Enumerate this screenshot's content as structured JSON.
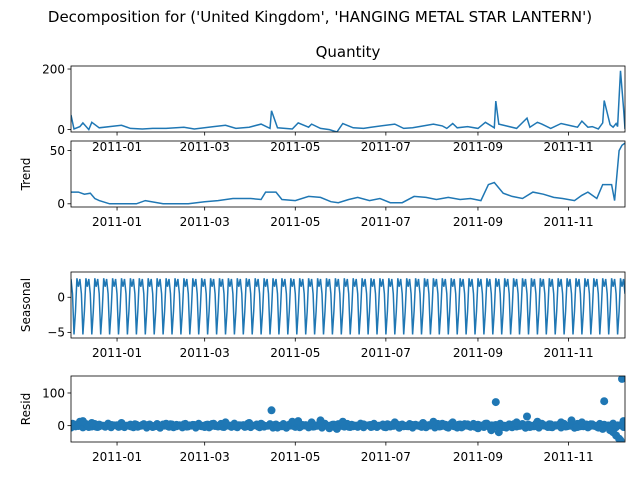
{
  "title": "Decomposition for ('United Kingdom', 'HANGING METAL STAR LANTERN')",
  "chart_data": [
    {
      "type": "line",
      "panel": "observed",
      "title": "Quantity",
      "ylabel": "",
      "ylim": [
        -8,
        210
      ],
      "yticks": [
        0,
        200
      ],
      "xlim": [
        "2010-12-01",
        "2011-12-09"
      ],
      "xticks": [
        "2011-01",
        "2011-03",
        "2011-05",
        "2011-07",
        "2011-09",
        "2011-11"
      ],
      "x": [
        "2010-12-01",
        "2010-12-03",
        "2010-12-07",
        "2010-12-09",
        "2010-12-13",
        "2010-12-15",
        "2010-12-20",
        "2011-01-04",
        "2011-01-10",
        "2011-01-18",
        "2011-01-25",
        "2011-02-03",
        "2011-02-15",
        "2011-02-22",
        "2011-03-07",
        "2011-03-15",
        "2011-03-22",
        "2011-03-31",
        "2011-04-08",
        "2011-04-14",
        "2011-04-15",
        "2011-04-19",
        "2011-04-29",
        "2011-05-03",
        "2011-05-10",
        "2011-05-12",
        "2011-05-18",
        "2011-05-24",
        "2011-05-29",
        "2011-06-02",
        "2011-06-09",
        "2011-06-16",
        "2011-06-21",
        "2011-07-07",
        "2011-07-13",
        "2011-07-19",
        "2011-08-02",
        "2011-08-08",
        "2011-08-11",
        "2011-08-15",
        "2011-08-18",
        "2011-08-25",
        "2011-09-01",
        "2011-09-06",
        "2011-09-12",
        "2011-09-13",
        "2011-09-15",
        "2011-09-20",
        "2011-09-27",
        "2011-10-04",
        "2011-10-06",
        "2011-10-11",
        "2011-10-14",
        "2011-10-20",
        "2011-10-27",
        "2011-11-03",
        "2011-11-07",
        "2011-11-10",
        "2011-11-14",
        "2011-11-17",
        "2011-11-21",
        "2011-11-24",
        "2011-11-25",
        "2011-11-29",
        "2011-12-01",
        "2011-12-03",
        "2011-12-04",
        "2011-12-06",
        "2011-12-08",
        "2011-12-09"
      ],
      "values": [
        48,
        2,
        10,
        22,
        0,
        24,
        6,
        14,
        4,
        2,
        4,
        4,
        8,
        2,
        10,
        14,
        4,
        8,
        18,
        4,
        62,
        6,
        2,
        22,
        8,
        18,
        4,
        0,
        -8,
        20,
        6,
        4,
        8,
        18,
        4,
        6,
        18,
        12,
        4,
        20,
        6,
        10,
        4,
        24,
        6,
        94,
        18,
        12,
        4,
        38,
        8,
        24,
        18,
        4,
        20,
        12,
        8,
        28,
        8,
        10,
        2,
        22,
        96,
        16,
        8,
        20,
        10,
        194,
        72,
        2
      ]
    },
    {
      "type": "line",
      "panel": "trend",
      "ylabel": "Trend",
      "ylim": [
        -3,
        59
      ],
      "yticks": [
        0,
        50
      ],
      "xlim": [
        "2010-12-01",
        "2011-12-09"
      ],
      "xticks": [
        "2011-01",
        "2011-03",
        "2011-05",
        "2011-07",
        "2011-09",
        "2011-11"
      ],
      "x": [
        "2010-12-01",
        "2010-12-06",
        "2010-12-10",
        "2010-12-14",
        "2010-12-17",
        "2010-12-20",
        "2010-12-27",
        "2011-01-03",
        "2011-01-08",
        "2011-01-14",
        "2011-01-20",
        "2011-02-01",
        "2011-02-10",
        "2011-02-18",
        "2011-03-01",
        "2011-03-10",
        "2011-03-20",
        "2011-04-01",
        "2011-04-08",
        "2011-04-11",
        "2011-04-18",
        "2011-04-22",
        "2011-05-01",
        "2011-05-10",
        "2011-05-18",
        "2011-05-25",
        "2011-05-30",
        "2011-06-06",
        "2011-06-12",
        "2011-06-20",
        "2011-06-27",
        "2011-07-04",
        "2011-07-12",
        "2011-07-20",
        "2011-07-28",
        "2011-08-04",
        "2011-08-12",
        "2011-08-20",
        "2011-08-27",
        "2011-09-03",
        "2011-09-08",
        "2011-09-12",
        "2011-09-18",
        "2011-09-24",
        "2011-10-01",
        "2011-10-08",
        "2011-10-15",
        "2011-10-22",
        "2011-10-28",
        "2011-11-05",
        "2011-11-10",
        "2011-11-14",
        "2011-11-20",
        "2011-11-24",
        "2011-11-30",
        "2011-12-02",
        "2011-12-05",
        "2011-12-07",
        "2011-12-09"
      ],
      "values": [
        11,
        11,
        9,
        10,
        5,
        3,
        0,
        0,
        0,
        0,
        3,
        0,
        0,
        0,
        2,
        3,
        5,
        5,
        4,
        11,
        11,
        4,
        3,
        7,
        6,
        2,
        1,
        4,
        6,
        3,
        5,
        1,
        1,
        7,
        6,
        4,
        6,
        4,
        5,
        3,
        18,
        20,
        10,
        7,
        5,
        11,
        9,
        6,
        5,
        3,
        8,
        11,
        5,
        18,
        18,
        3,
        50,
        55,
        57
      ]
    },
    {
      "type": "line",
      "panel": "seasonal",
      "ylabel": "Seasonal",
      "ylim": [
        -5.8,
        3.6
      ],
      "yticks": [
        -5,
        0
      ],
      "xlim": [
        "2010-12-01",
        "2011-12-09"
      ],
      "xticks": [
        "2011-01",
        "2011-03",
        "2011-05",
        "2011-07",
        "2011-09",
        "2011-11"
      ],
      "period_days": 6,
      "pattern": [
        2.6,
        0.5,
        -5.3,
        -2.0,
        2.7,
        1.5
      ]
    },
    {
      "type": "scatter",
      "panel": "resid",
      "ylabel": "Resid",
      "ylim": [
        -50,
        152
      ],
      "yticks": [
        0,
        100
      ],
      "xlim": [
        "2010-12-01",
        "2011-12-09"
      ],
      "xticks": [
        "2011-01",
        "2011-03",
        "2011-05",
        "2011-07",
        "2011-09",
        "2011-11"
      ],
      "points": [
        [
          "2010-12-01",
          -6
        ],
        [
          "2010-12-03",
          4
        ],
        [
          "2010-12-07",
          12
        ],
        [
          "2010-12-09",
          14
        ],
        [
          "2010-12-13",
          -4
        ],
        [
          "2010-12-15",
          8
        ],
        [
          "2010-12-20",
          -2
        ],
        [
          "2010-12-28",
          2
        ],
        [
          "2011-01-04",
          8
        ],
        [
          "2011-01-10",
          -2
        ],
        [
          "2011-01-18",
          2
        ],
        [
          "2011-01-25",
          -4
        ],
        [
          "2011-02-03",
          6
        ],
        [
          "2011-02-10",
          -2
        ],
        [
          "2011-02-15",
          4
        ],
        [
          "2011-02-22",
          2
        ],
        [
          "2011-03-01",
          -4
        ],
        [
          "2011-03-07",
          6
        ],
        [
          "2011-03-15",
          10
        ],
        [
          "2011-03-22",
          -3
        ],
        [
          "2011-03-31",
          8
        ],
        [
          "2011-04-08",
          6
        ],
        [
          "2011-04-15",
          47
        ],
        [
          "2011-04-19",
          -6
        ],
        [
          "2011-04-29",
          12
        ],
        [
          "2011-05-03",
          14
        ],
        [
          "2011-05-10",
          -4
        ],
        [
          "2011-05-12",
          10
        ],
        [
          "2011-05-18",
          16
        ],
        [
          "2011-05-24",
          -8
        ],
        [
          "2011-05-29",
          -10
        ],
        [
          "2011-06-02",
          12
        ],
        [
          "2011-06-09",
          -2
        ],
        [
          "2011-06-16",
          4
        ],
        [
          "2011-06-21",
          2
        ],
        [
          "2011-06-30",
          -4
        ],
        [
          "2011-07-07",
          10
        ],
        [
          "2011-07-13",
          -2
        ],
        [
          "2011-07-19",
          2
        ],
        [
          "2011-07-26",
          8
        ],
        [
          "2011-08-02",
          12
        ],
        [
          "2011-08-08",
          6
        ],
        [
          "2011-08-11",
          -4
        ],
        [
          "2011-08-15",
          10
        ],
        [
          "2011-08-18",
          -6
        ],
        [
          "2011-08-25",
          4
        ],
        [
          "2011-09-01",
          -8
        ],
        [
          "2011-09-06",
          6
        ],
        [
          "2011-09-10",
          -14
        ],
        [
          "2011-09-13",
          72
        ],
        [
          "2011-09-15",
          -20
        ],
        [
          "2011-09-20",
          -6
        ],
        [
          "2011-09-27",
          10
        ],
        [
          "2011-10-04",
          28
        ],
        [
          "2011-10-06",
          -4
        ],
        [
          "2011-10-11",
          12
        ],
        [
          "2011-10-14",
          6
        ],
        [
          "2011-10-20",
          -4
        ],
        [
          "2011-10-27",
          10
        ],
        [
          "2011-11-03",
          16
        ],
        [
          "2011-11-07",
          -4
        ],
        [
          "2011-11-10",
          10
        ],
        [
          "2011-11-14",
          -2
        ],
        [
          "2011-11-17",
          4
        ],
        [
          "2011-11-21",
          -6
        ],
        [
          "2011-11-24",
          -10
        ],
        [
          "2011-11-25",
          75
        ],
        [
          "2011-11-29",
          -14
        ],
        [
          "2011-12-01",
          -20
        ],
        [
          "2011-12-03",
          -30
        ],
        [
          "2011-12-05",
          -40
        ],
        [
          "2011-12-06",
          -45
        ],
        [
          "2011-12-07",
          143
        ],
        [
          "2011-12-08",
          14
        ],
        [
          "2011-12-09",
          12
        ]
      ],
      "dense_band": {
        "center": 0,
        "amplitude": 7
      }
    }
  ]
}
